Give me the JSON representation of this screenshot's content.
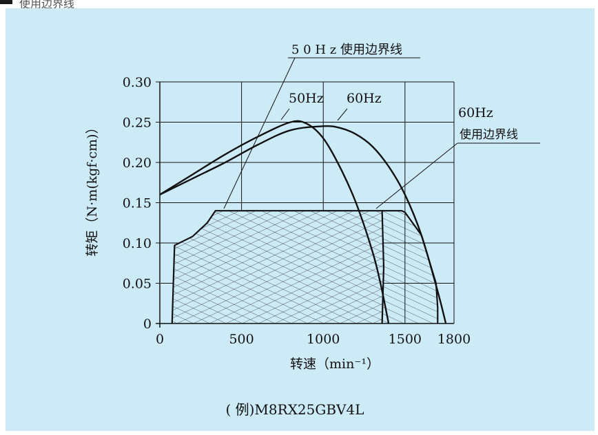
{
  "header": {
    "partial_text": "使用边界线"
  },
  "chart_data": {
    "type": "line",
    "ylabel": "转矩（N·m(kgf·cm)）",
    "xlabel": "转速（min⁻¹）",
    "xlim": [
      0,
      1800
    ],
    "ylim": [
      0,
      0.3
    ],
    "x_ticks": [
      0,
      500,
      1000,
      1500,
      1800
    ],
    "y_ticks": [
      0,
      0.05,
      0.1,
      0.15,
      0.2,
      0.25,
      0.3
    ],
    "x_tick_labels": [
      "0",
      "500",
      "1000",
      "1500",
      "1800"
    ],
    "y_tick_labels": [
      "0",
      "0.05",
      "0.10",
      "0.15",
      "0.20",
      "0.25",
      "0.30"
    ],
    "grid": true,
    "series": [
      {
        "name": "50Hz",
        "x": [
          0,
          200,
          400,
          600,
          800,
          900,
          1000,
          1100,
          1200,
          1300,
          1350,
          1400
        ],
        "y": [
          0.16,
          0.185,
          0.21,
          0.232,
          0.25,
          0.248,
          0.23,
          0.195,
          0.15,
          0.09,
          0.05,
          0.0
        ]
      },
      {
        "name": "60Hz",
        "x": [
          0,
          200,
          400,
          600,
          800,
          1000,
          1100,
          1200,
          1300,
          1400,
          1500,
          1600,
          1700,
          1750
        ],
        "y": [
          0.16,
          0.18,
          0.2,
          0.222,
          0.24,
          0.245,
          0.243,
          0.235,
          0.22,
          0.195,
          0.16,
          0.11,
          0.04,
          0.0
        ]
      }
    ],
    "boundaries": [
      {
        "name": "50Hz 使用边界线",
        "x": [
          75,
          90,
          200,
          290,
          340,
          1360,
          1370,
          1360
        ],
        "y": [
          0.0,
          0.097,
          0.108,
          0.125,
          0.14,
          0.14,
          0.07,
          0.0
        ]
      },
      {
        "name": "60Hz 使用边界线",
        "x": [
          1360,
          1480,
          1500,
          1600,
          1690,
          1700,
          1700
        ],
        "y": [
          0.14,
          0.14,
          0.138,
          0.11,
          0.05,
          0.02,
          0.0
        ]
      }
    ],
    "annotations": {
      "label_50hz_boundary": "5 0 H z 使用边界线",
      "label_50hz": "50Hz",
      "label_60hz": "60Hz",
      "label_60hz_boundary_1": "60Hz",
      "label_60hz_boundary_2": "使用边界线"
    },
    "example": "( 例)M8RX25GBV4L"
  }
}
